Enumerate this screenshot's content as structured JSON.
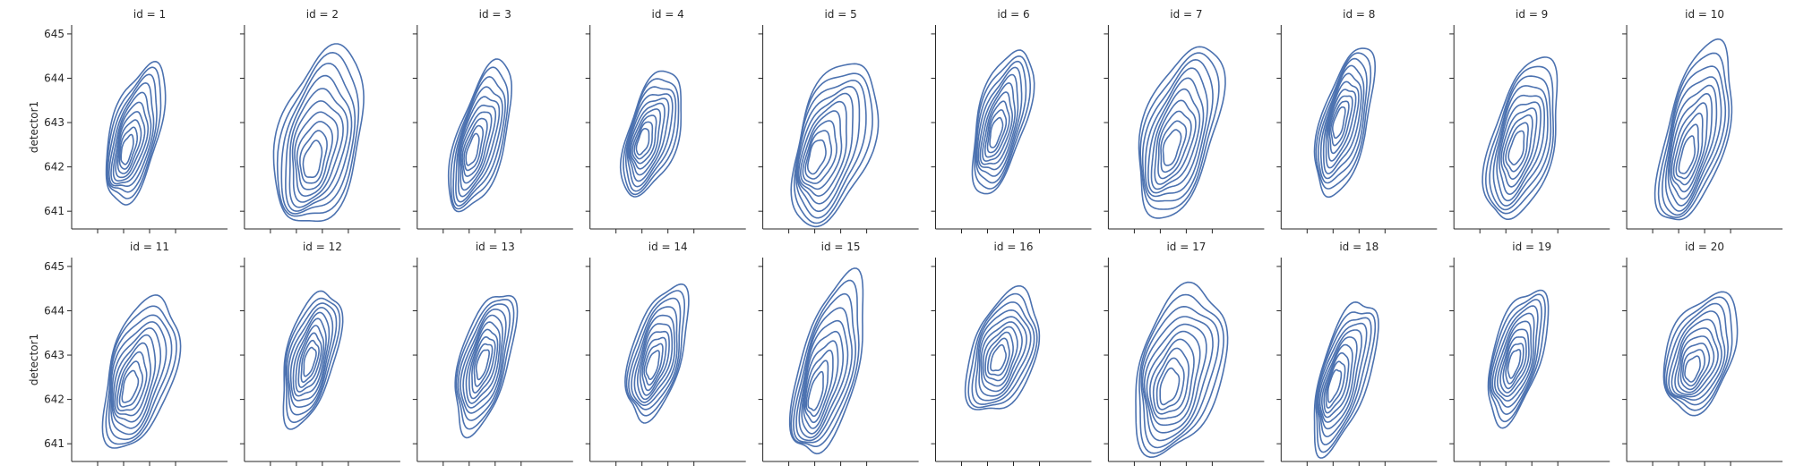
{
  "chart_data": {
    "type": "kde-contour-facet-grid",
    "facet_variable": "id",
    "rows": 2,
    "cols": 10,
    "ylabel": "detector1",
    "xlabel": "",
    "ylim": [
      640.6,
      645.2
    ],
    "yticks": [
      641,
      642,
      643,
      644,
      645
    ],
    "xlim": [
      0,
      6
    ],
    "xticks": [
      1,
      2,
      3,
      4
    ],
    "grid": false,
    "line_color": "#4c72b0",
    "levels": 10,
    "panels": [
      {
        "title": "id = 1",
        "cx": 2.45,
        "cy": 642.75,
        "sx": 1.05,
        "sy": 1.08,
        "a": 2.6,
        "pk": [
          2.1,
          642.35
        ]
      },
      {
        "title": "id = 2",
        "cx": 2.9,
        "cy": 642.65,
        "sx": 1.75,
        "sy": 1.35,
        "a": 3.0,
        "pk": [
          2.6,
          642.1
        ]
      },
      {
        "title": "id = 3",
        "cx": 2.45,
        "cy": 642.65,
        "sx": 1.05,
        "sy": 1.18,
        "a": 2.4,
        "pk": [
          2.1,
          642.35
        ]
      },
      {
        "title": "id = 4",
        "cx": 2.4,
        "cy": 642.75,
        "sx": 1.1,
        "sy": 0.98,
        "a": 2.3,
        "pk": [
          2.0,
          642.55
        ]
      },
      {
        "title": "id = 5",
        "cx": 2.75,
        "cy": 642.55,
        "sx": 1.6,
        "sy": 1.28,
        "a": 2.3,
        "pk": [
          2.0,
          642.2
        ]
      },
      {
        "title": "id = 6",
        "cx": 2.55,
        "cy": 643.05,
        "sx": 1.05,
        "sy": 1.12,
        "a": 2.5,
        "pk": [
          2.3,
          642.75
        ]
      },
      {
        "title": "id = 7",
        "cx": 2.75,
        "cy": 642.8,
        "sx": 1.55,
        "sy": 1.35,
        "a": 2.3,
        "pk": [
          2.4,
          642.4
        ]
      },
      {
        "title": "id = 8",
        "cx": 2.45,
        "cy": 643.0,
        "sx": 1.0,
        "sy": 1.15,
        "a": 2.7,
        "pk": [
          2.2,
          643.0
        ]
      },
      {
        "title": "id = 9",
        "cx": 2.65,
        "cy": 642.6,
        "sx": 1.35,
        "sy": 1.25,
        "a": 2.6,
        "pk": [
          2.4,
          642.4
        ]
      },
      {
        "title": "id = 10",
        "cx": 2.65,
        "cy": 642.75,
        "sx": 1.3,
        "sy": 1.4,
        "a": 2.6,
        "pk": [
          2.3,
          642.2
        ]
      },
      {
        "title": "id = 11",
        "cx": 2.65,
        "cy": 642.6,
        "sx": 1.4,
        "sy": 1.18,
        "a": 2.4,
        "pk": [
          2.2,
          642.25
        ]
      },
      {
        "title": "id = 12",
        "cx": 2.55,
        "cy": 642.95,
        "sx": 1.05,
        "sy": 1.05,
        "a": 2.6,
        "pk": [
          2.5,
          642.85
        ]
      },
      {
        "title": "id = 13",
        "cx": 2.6,
        "cy": 642.85,
        "sx": 1.05,
        "sy": 1.1,
        "a": 2.5,
        "pk": [
          2.5,
          642.8
        ]
      },
      {
        "title": "id = 14",
        "cx": 2.6,
        "cy": 643.05,
        "sx": 1.1,
        "sy": 1.05,
        "a": 2.4,
        "pk": [
          2.4,
          642.75
        ]
      },
      {
        "title": "id = 15",
        "cx": 2.55,
        "cy": 642.75,
        "sx": 1.25,
        "sy": 1.4,
        "a": 2.6,
        "pk": [
          2.0,
          642.1
        ]
      },
      {
        "title": "id = 16",
        "cx": 2.6,
        "cy": 643.05,
        "sx": 1.4,
        "sy": 0.98,
        "a": 2.0,
        "pk": [
          2.4,
          642.9
        ]
      },
      {
        "title": "id = 17",
        "cx": 2.75,
        "cy": 642.65,
        "sx": 1.8,
        "sy": 1.3,
        "a": 2.5,
        "pk": [
          2.3,
          642.25
        ]
      },
      {
        "title": "id = 18",
        "cx": 2.45,
        "cy": 642.55,
        "sx": 1.05,
        "sy": 1.2,
        "a": 2.3,
        "pk": [
          2.0,
          642.3
        ]
      },
      {
        "title": "id = 19",
        "cx": 2.45,
        "cy": 643.0,
        "sx": 1.05,
        "sy": 1.05,
        "a": 2.4,
        "pk": [
          2.3,
          642.8
        ]
      },
      {
        "title": "id = 20",
        "cx": 2.85,
        "cy": 643.05,
        "sx": 1.45,
        "sy": 0.95,
        "a": 2.0,
        "pk": [
          2.5,
          642.65
        ]
      }
    ]
  }
}
